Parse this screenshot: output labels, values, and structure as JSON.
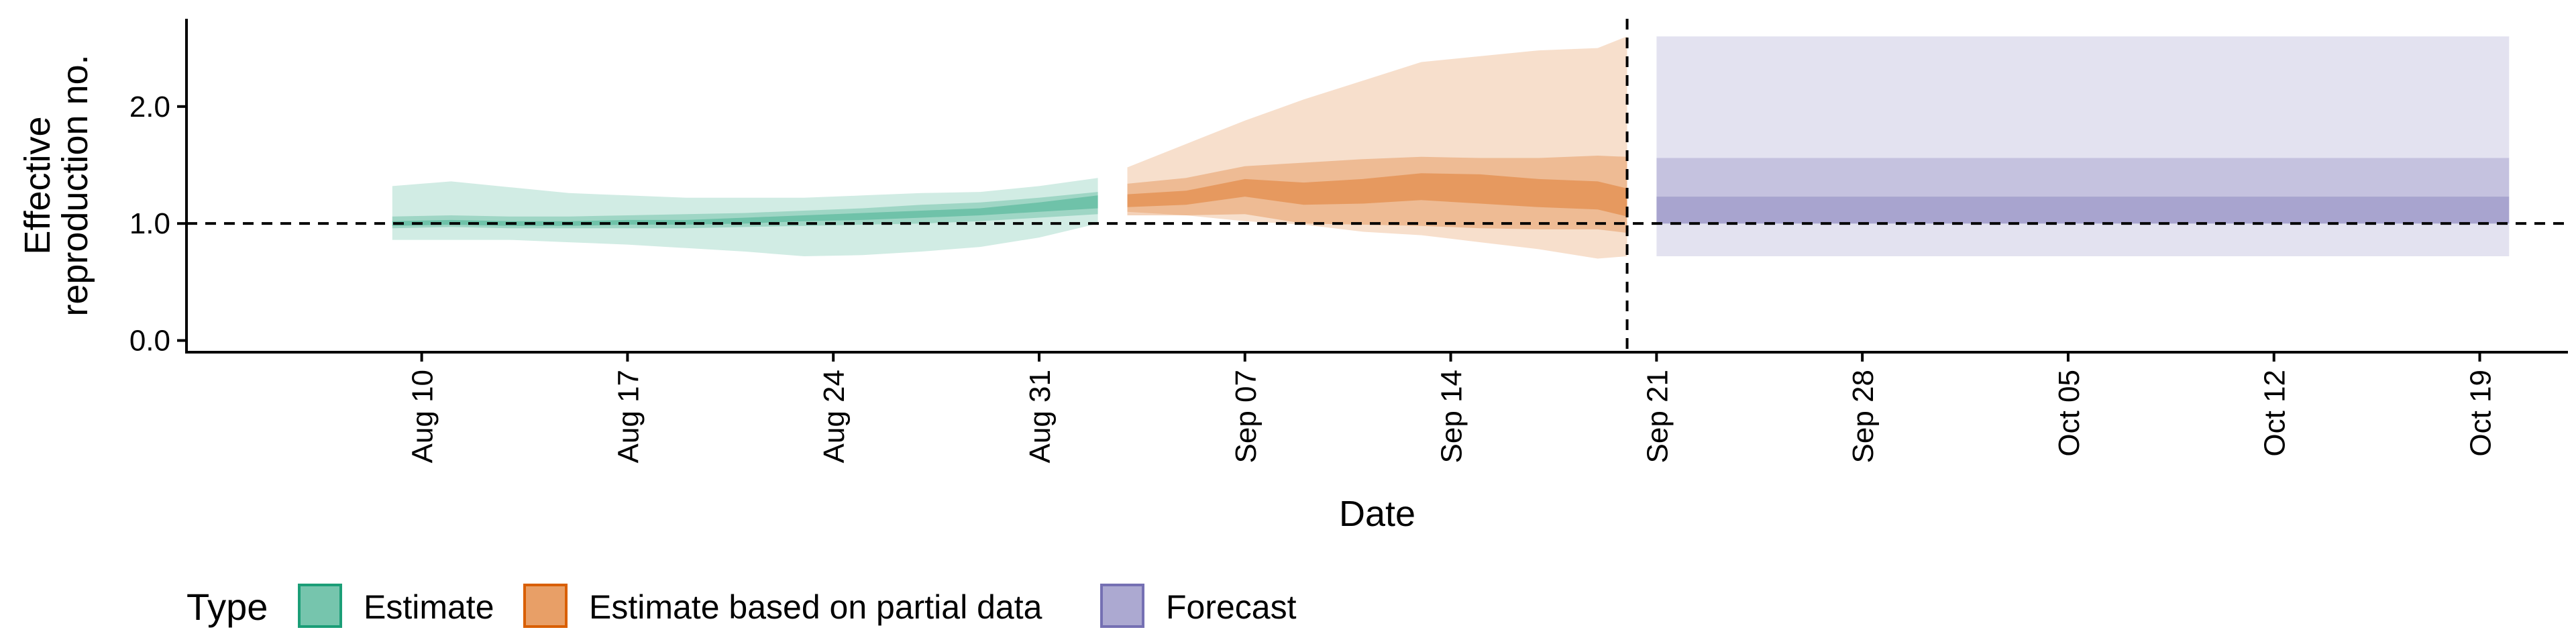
{
  "chart_data": {
    "type": "area",
    "title": "",
    "xlabel": "Date",
    "ylabel": [
      "Effective",
      "reproduction no."
    ],
    "x_range": [
      "2021-08-02",
      "2021-10-22"
    ],
    "ylim": [
      -0.1,
      2.75
    ],
    "y_ticks": [
      0.0,
      1.0,
      2.0
    ],
    "y_tick_labels": [
      "0.0",
      "1.0",
      "2.0"
    ],
    "x_ticks": [
      "2021-08-10",
      "2021-08-17",
      "2021-08-24",
      "2021-08-31",
      "2021-09-07",
      "2021-09-14",
      "2021-09-21",
      "2021-09-28",
      "2021-10-05",
      "2021-10-12",
      "2021-10-19"
    ],
    "x_tick_labels": [
      "Aug 10",
      "Aug 17",
      "Aug 24",
      "Aug 31",
      "Sep 07",
      "Sep 14",
      "Sep 21",
      "Sep 28",
      "Oct 05",
      "Oct 12",
      "Oct 19"
    ],
    "reference_line_y": 1.0,
    "reference_line_x": "2021-09-20",
    "grid": false,
    "legend": {
      "title": "Type",
      "position": "bottom-left",
      "entries": [
        {
          "label": "Estimate",
          "color": "#1b9e77"
        },
        {
          "label": "Estimate based on partial data",
          "color": "#d95f02"
        },
        {
          "label": "Forecast",
          "color": "#7570b3"
        }
      ]
    },
    "series": [
      {
        "name": "Estimate",
        "color": "#1b9e77",
        "x": [
          "2021-08-09",
          "2021-08-11",
          "2021-08-13",
          "2021-08-15",
          "2021-08-17",
          "2021-08-19",
          "2021-08-21",
          "2021-08-23",
          "2021-08-25",
          "2021-08-27",
          "2021-08-29",
          "2021-08-31",
          "2021-09-02"
        ],
        "median": [
          1.0,
          1.01,
          1.0,
          1.0,
          1.01,
          1.01,
          1.02,
          1.04,
          1.06,
          1.08,
          1.1,
          1.14,
          1.18
        ],
        "band_20": [
          [
            0.98,
            1.02
          ],
          [
            0.99,
            1.03
          ],
          [
            0.98,
            1.02
          ],
          [
            0.98,
            1.02
          ],
          [
            0.99,
            1.03
          ],
          [
            0.99,
            1.03
          ],
          [
            1.0,
            1.05
          ],
          [
            1.02,
            1.07
          ],
          [
            1.03,
            1.09
          ],
          [
            1.05,
            1.11
          ],
          [
            1.07,
            1.13
          ],
          [
            1.1,
            1.18
          ],
          [
            1.13,
            1.24
          ]
        ],
        "band_50": [
          [
            0.96,
            1.06
          ],
          [
            0.97,
            1.07
          ],
          [
            0.96,
            1.06
          ],
          [
            0.96,
            1.06
          ],
          [
            0.96,
            1.07
          ],
          [
            0.96,
            1.08
          ],
          [
            0.97,
            1.09
          ],
          [
            0.98,
            1.11
          ],
          [
            0.99,
            1.13
          ],
          [
            1.0,
            1.16
          ],
          [
            1.02,
            1.18
          ],
          [
            1.05,
            1.22
          ],
          [
            1.08,
            1.27
          ]
        ],
        "band_90": [
          [
            0.86,
            1.32
          ],
          [
            0.86,
            1.36
          ],
          [
            0.86,
            1.31
          ],
          [
            0.84,
            1.26
          ],
          [
            0.82,
            1.24
          ],
          [
            0.79,
            1.22
          ],
          [
            0.76,
            1.22
          ],
          [
            0.72,
            1.22
          ],
          [
            0.73,
            1.24
          ],
          [
            0.76,
            1.26
          ],
          [
            0.8,
            1.27
          ],
          [
            0.88,
            1.32
          ],
          [
            1.0,
            1.39
          ]
        ]
      },
      {
        "name": "Estimate based on partial data",
        "color": "#d95f02",
        "x": [
          "2021-09-03",
          "2021-09-05",
          "2021-09-07",
          "2021-09-09",
          "2021-09-11",
          "2021-09-13",
          "2021-09-15",
          "2021-09-17",
          "2021-09-19",
          "2021-09-20"
        ],
        "median": [
          1.19,
          1.22,
          1.3,
          1.25,
          1.27,
          1.33,
          1.3,
          1.26,
          1.24,
          1.18
        ],
        "band_20": [
          [
            1.14,
            1.25
          ],
          [
            1.16,
            1.28
          ],
          [
            1.23,
            1.38
          ],
          [
            1.16,
            1.35
          ],
          [
            1.17,
            1.38
          ],
          [
            1.2,
            1.43
          ],
          [
            1.17,
            1.42
          ],
          [
            1.14,
            1.38
          ],
          [
            1.12,
            1.36
          ],
          [
            1.06,
            1.3
          ]
        ],
        "band_50": [
          [
            1.07,
            1.34
          ],
          [
            1.07,
            1.39
          ],
          [
            1.08,
            1.49
          ],
          [
            1.0,
            1.52
          ],
          [
            0.99,
            1.55
          ],
          [
            0.98,
            1.57
          ],
          [
            0.96,
            1.56
          ],
          [
            0.95,
            1.56
          ],
          [
            0.95,
            1.58
          ],
          [
            0.92,
            1.57
          ]
        ],
        "band_90": [
          [
            1.1,
            1.48
          ],
          [
            1.07,
            1.68
          ],
          [
            1.02,
            1.88
          ],
          [
            0.99,
            2.06
          ],
          [
            0.93,
            2.22
          ],
          [
            0.9,
            2.38
          ],
          [
            0.84,
            2.43
          ],
          [
            0.78,
            2.48
          ],
          [
            0.7,
            2.5
          ],
          [
            0.72,
            2.6
          ]
        ]
      },
      {
        "name": "Forecast",
        "color": "#7570b3",
        "x": [
          "2021-09-21",
          "2021-10-20"
        ],
        "median": [
          1.1,
          1.1
        ],
        "band_20": [
          [
            1.0,
            1.23
          ],
          [
            1.0,
            1.23
          ]
        ],
        "band_50": [
          [
            1.0,
            1.56
          ],
          [
            1.0,
            1.56
          ]
        ],
        "band_90": [
          [
            0.72,
            2.6
          ],
          [
            0.72,
            2.6
          ]
        ]
      }
    ]
  }
}
